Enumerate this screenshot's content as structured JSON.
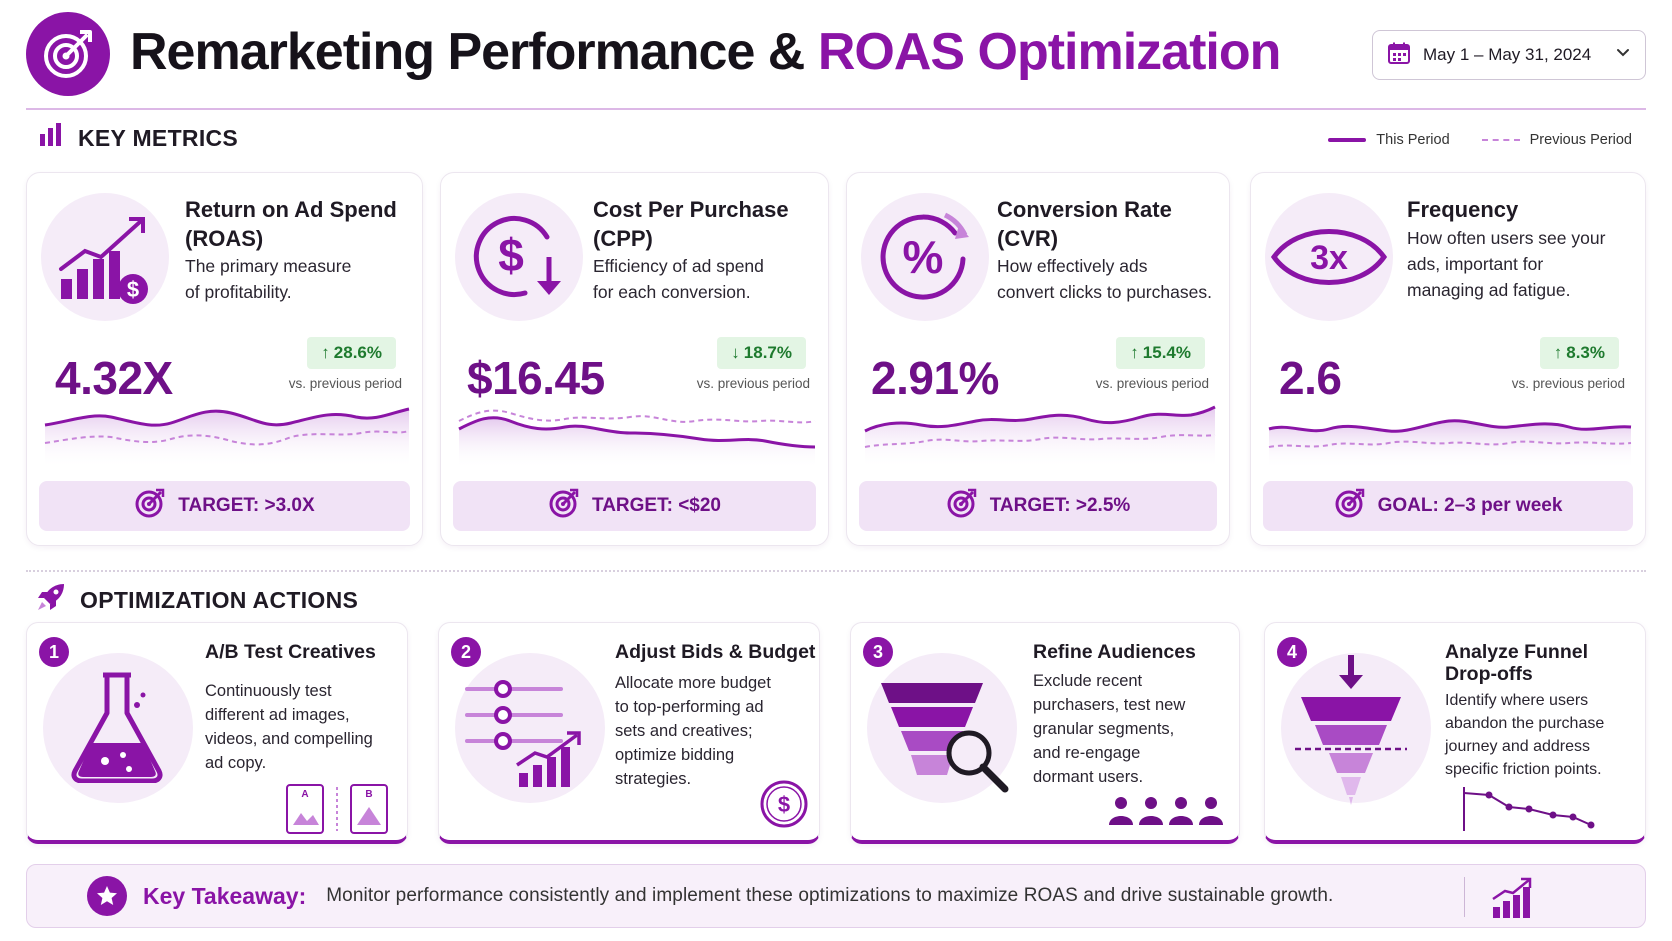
{
  "header": {
    "title_main": "Remarketing Performance &",
    "title_accent": "ROAS Optimization",
    "date_range": "May 1 – May 31, 2024",
    "logo_icon": "target-icon",
    "date_icon": "calendar-icon"
  },
  "key_metrics": {
    "heading": "KEY METRICS",
    "legend": {
      "this_period": "This Period",
      "previous_period": "Previous Period"
    },
    "cards": [
      {
        "title_line1": "Return on Ad Spend",
        "title_line2": "(ROAS)",
        "desc_line1": "The primary measure",
        "desc_line2": "of profitability.",
        "value": "4.32X",
        "delta": "28.6%",
        "delta_direction": "up",
        "delta_sub": "vs. previous period",
        "target": "TARGET: >3.0X",
        "icon": "growth-chart-dollar-icon"
      },
      {
        "title_line1": "Cost Per Purchase",
        "title_line2": "(CPP)",
        "desc_line1": "Efficiency of ad spend",
        "desc_line2": "for each conversion.",
        "value": "$16.45",
        "delta": "18.7%",
        "delta_direction": "down",
        "delta_sub": "vs. previous period",
        "target": "TARGET: <$20",
        "icon": "dollar-down-icon"
      },
      {
        "title_line1": "Conversion Rate",
        "title_line2": "(CVR)",
        "desc_line1": "How effectively ads",
        "desc_line2": "convert clicks to purchases.",
        "value": "2.91%",
        "delta": "15.4%",
        "delta_direction": "up",
        "delta_sub": "vs. previous period",
        "target": "TARGET: >2.5%",
        "icon": "percent-icon"
      },
      {
        "title_line1": "Frequency",
        "title_line2": "",
        "desc_line1": "How often users see your",
        "desc_line2": "ads, important for",
        "desc_line3": "managing ad fatigue.",
        "value": "2.6",
        "delta": "8.3%",
        "delta_direction": "up",
        "delta_sub": "vs. previous period",
        "target": "GOAL: 2–3 per week",
        "icon": "eye-3x-icon",
        "icon_text": "3x"
      }
    ]
  },
  "optimization": {
    "heading": "OPTIMIZATION ACTIONS",
    "actions": [
      {
        "num": "1",
        "title": "A/B Test Creatives",
        "desc": [
          "Continuously test",
          "different ad images,",
          "videos, and compelling",
          "ad copy."
        ],
        "variant_a": "A",
        "variant_b": "B",
        "icon": "flask-icon"
      },
      {
        "num": "2",
        "title": "Adjust Bids & Budget",
        "desc": [
          "Allocate more budget",
          "to top-performing ad",
          "sets and creatives;",
          "optimize bidding",
          "strategies."
        ],
        "icon": "sliders-chart-icon"
      },
      {
        "num": "3",
        "title": "Refine Audiences",
        "desc": [
          "Exclude recent",
          "purchasers, test new",
          "granular segments,",
          "and re-engage",
          "dormant users."
        ],
        "icon": "funnel-search-icon"
      },
      {
        "num": "4",
        "title_line1": "Analyze Funnel",
        "title_line2": "Drop-offs",
        "desc": [
          "Identify where users",
          "abandon the purchase",
          "journey and address",
          "specific friction points."
        ],
        "icon": "funnel-dropoff-icon"
      }
    ]
  },
  "takeaway": {
    "label": "Key Takeaway:",
    "text": "Monitor performance consistently and implement these optimizations to maximize ROAS and drive sustainable growth."
  },
  "colors": {
    "accent": "#8a14a6",
    "value": "#6e1087",
    "positive": "#1e7a2e",
    "badge_bg": "#e3f5e4",
    "target_bg": "#f1e3f6"
  }
}
